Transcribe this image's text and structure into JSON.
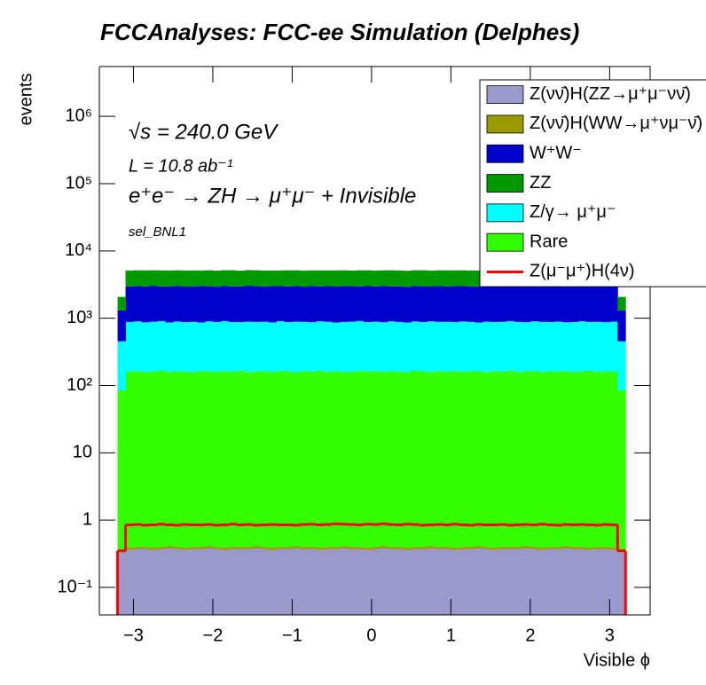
{
  "chart_data": {
    "type": "stacked-histogram",
    "title": "FCCAnalyses: FCC-ee Simulation (Delphes)",
    "x_label": "Visible ϕ",
    "y_label": "events",
    "annotations": [
      "√s = 240.0 GeV",
      "L = 10.8 ab⁻¹",
      "e⁺e⁻ → ZH → μ⁺μ⁻ + Invisible",
      "sel_BNL1"
    ],
    "log_y": true,
    "legend": "top-right",
    "xlim": [
      -3.43,
      3.51
    ],
    "ylim": [
      0.039,
      5500000
    ],
    "xticks": [
      {
        "value": -3,
        "label": "−3"
      },
      {
        "value": -2,
        "label": "−2"
      },
      {
        "value": -1,
        "label": "−1"
      },
      0,
      1,
      2,
      3
    ],
    "yticks": [
      {
        "value": 0.1,
        "label": "10⁻¹"
      },
      1,
      10,
      {
        "value": 100,
        "label": "10²"
      },
      {
        "value": 1000,
        "label": "10³"
      },
      {
        "value": 10000,
        "label": "10⁴"
      },
      {
        "value": 100000,
        "label": "10⁵"
      },
      {
        "value": 1000000,
        "label": "10⁶"
      }
    ],
    "bins": [
      -3.2,
      -3.1,
      -3.0,
      -2.9,
      -2.8,
      -2.7,
      -2.6,
      -2.5,
      -2.4,
      -2.3,
      -2.2,
      -2.1,
      -2.0,
      -1.9,
      -1.8,
      -1.7,
      -1.6,
      -1.5,
      -1.4,
      -1.3,
      -1.2,
      -1.1,
      -1.0,
      -0.9,
      -0.8,
      -0.7,
      -0.6,
      -0.5,
      -0.4,
      -0.3,
      -0.2,
      -0.1,
      0.0,
      0.1,
      0.2,
      0.3,
      0.4,
      0.5,
      0.6,
      0.7,
      0.8,
      0.9,
      1.0,
      1.1,
      1.2,
      1.3,
      1.4,
      1.5,
      1.6,
      1.7,
      1.8,
      1.9,
      2.0,
      2.1,
      2.2,
      2.3,
      2.4,
      2.5,
      2.6,
      2.7,
      2.8,
      2.9,
      3.0,
      3.1,
      3.2
    ],
    "stack_order": [
      0,
      1,
      5,
      4,
      2,
      3
    ],
    "series": [
      {
        "name": "Z(νν̄)H(ZZ→μ⁺μ⁻νν̄)",
        "color": "#9999cc",
        "values": [
          0.33,
          0.36,
          0.37,
          0.37,
          0.36,
          0.37,
          0.38,
          0.37,
          0.36,
          0.37,
          0.37,
          0.38,
          0.37,
          0.36,
          0.37,
          0.37,
          0.37,
          0.38,
          0.37,
          0.36,
          0.37,
          0.37,
          0.38,
          0.37,
          0.37,
          0.36,
          0.37,
          0.37,
          0.38,
          0.37,
          0.37,
          0.36,
          0.37,
          0.38,
          0.37,
          0.37,
          0.36,
          0.37,
          0.37,
          0.38,
          0.37,
          0.37,
          0.36,
          0.37,
          0.37,
          0.38,
          0.37,
          0.36,
          0.37,
          0.37,
          0.37,
          0.38,
          0.37,
          0.36,
          0.37,
          0.37,
          0.38,
          0.37,
          0.37,
          0.36,
          0.37,
          0.37,
          0.36,
          0.33
        ]
      },
      {
        "name": "Z(νν̄)H(WW→μ⁺νμ⁻ν̄)",
        "color": "#999900",
        "values": [
          0.03,
          0.03,
          0.03,
          0.03,
          0.03,
          0.03,
          0.03,
          0.03,
          0.03,
          0.03,
          0.03,
          0.03,
          0.03,
          0.03,
          0.03,
          0.03,
          0.03,
          0.03,
          0.03,
          0.03,
          0.03,
          0.03,
          0.03,
          0.03,
          0.03,
          0.03,
          0.03,
          0.03,
          0.03,
          0.03,
          0.03,
          0.03,
          0.03,
          0.03,
          0.03,
          0.03,
          0.03,
          0.03,
          0.03,
          0.03,
          0.03,
          0.03,
          0.03,
          0.03,
          0.03,
          0.03,
          0.03,
          0.03,
          0.03,
          0.03,
          0.03,
          0.03,
          0.03,
          0.03,
          0.03,
          0.03,
          0.03,
          0.03,
          0.03,
          0.03,
          0.03,
          0.03,
          0.03,
          0.03
        ]
      },
      {
        "name": "W⁺W⁻",
        "color": "#0000cc",
        "values": [
          850,
          2080,
          2120,
          2090,
          2150,
          2060,
          2110,
          2130,
          2070,
          2100,
          2140,
          2090,
          2060,
          2120,
          2100,
          2080,
          2150,
          2110,
          2070,
          2130,
          2090,
          2100,
          2120,
          2060,
          2140,
          2080,
          2110,
          2090,
          2130,
          2100,
          2070,
          2120,
          2090,
          2150,
          2080,
          2100,
          2060,
          2130,
          2110,
          2090,
          2120,
          2070,
          2140,
          2100,
          2080,
          2110,
          2130,
          2090,
          2060,
          2120,
          2100,
          2140,
          2080,
          2090,
          2110,
          2070,
          2130,
          2100,
          2120,
          2060,
          2090,
          2110,
          2080,
          850
        ]
      },
      {
        "name": "ZZ",
        "color": "#009900",
        "values": [
          770,
          2160,
          2140,
          2190,
          2120,
          2170,
          2150,
          2130,
          2180,
          2150,
          2120,
          2170,
          2160,
          2140,
          2190,
          2130,
          2150,
          2170,
          2160,
          2120,
          2140,
          2180,
          2150,
          2170,
          2130,
          2160,
          2140,
          2190,
          2150,
          2120,
          2170,
          2160,
          2140,
          2130,
          2180,
          2150,
          2160,
          2140,
          2170,
          2120,
          2150,
          2190,
          2130,
          2160,
          2150,
          2140,
          2170,
          2180,
          2120,
          2150,
          2160,
          2140,
          2130,
          2170,
          2150,
          2190,
          2140,
          2160,
          2120,
          2170,
          2150,
          2140,
          2130,
          770
        ]
      },
      {
        "name": "Z/γ→ μ⁺μ⁻",
        "color": "#00ffff",
        "values": [
          370,
          720,
          735,
          710,
          725,
          740,
          705,
          730,
          715,
          725,
          700,
          735,
          720,
          745,
          715,
          710,
          730,
          720,
          725,
          705,
          740,
          715,
          730,
          720,
          710,
          735,
          725,
          700,
          720,
          730,
          745,
          715,
          725,
          710,
          735,
          720,
          705,
          730,
          715,
          740,
          720,
          725,
          710,
          735,
          720,
          700,
          730,
          715,
          725,
          740,
          720,
          710,
          735,
          725,
          715,
          730,
          705,
          720,
          740,
          715,
          725,
          710,
          730,
          370
        ]
      },
      {
        "name": "Rare",
        "color": "#33ff00",
        "values": [
          84,
          160,
          163,
          158,
          161,
          165,
          159,
          162,
          160,
          157,
          164,
          161,
          159,
          163,
          160,
          166,
          158,
          161,
          162,
          159,
          164,
          160,
          157,
          163,
          161,
          165,
          159,
          162,
          158,
          160,
          164,
          161,
          163,
          159,
          162,
          160,
          157,
          165,
          161,
          158,
          163,
          160,
          164,
          159,
          162,
          161,
          158,
          163,
          160,
          166,
          159,
          161,
          164,
          158,
          162,
          160,
          163,
          157,
          161,
          165,
          159,
          162,
          160,
          84
        ]
      },
      {
        "name": "Z(μ⁻μ⁺)H(4ν)",
        "color": "#ff0000",
        "values": [
          0.35,
          0.85,
          0.86,
          0.84,
          0.85,
          0.87,
          0.85,
          0.84,
          0.86,
          0.85,
          0.85,
          0.86,
          0.84,
          0.85,
          0.87,
          0.85,
          0.86,
          0.84,
          0.85,
          0.86,
          0.85,
          0.85,
          0.84,
          0.86,
          0.87,
          0.85,
          0.86,
          0.88,
          0.87,
          0.86,
          0.85,
          0.87,
          0.86,
          0.88,
          0.86,
          0.85,
          0.87,
          0.86,
          0.84,
          0.85,
          0.86,
          0.85,
          0.87,
          0.85,
          0.84,
          0.86,
          0.85,
          0.85,
          0.86,
          0.84,
          0.85,
          0.86,
          0.85,
          0.87,
          0.85,
          0.84,
          0.86,
          0.85,
          0.86,
          0.85,
          0.84,
          0.86,
          0.85,
          0.35
        ]
      }
    ]
  }
}
